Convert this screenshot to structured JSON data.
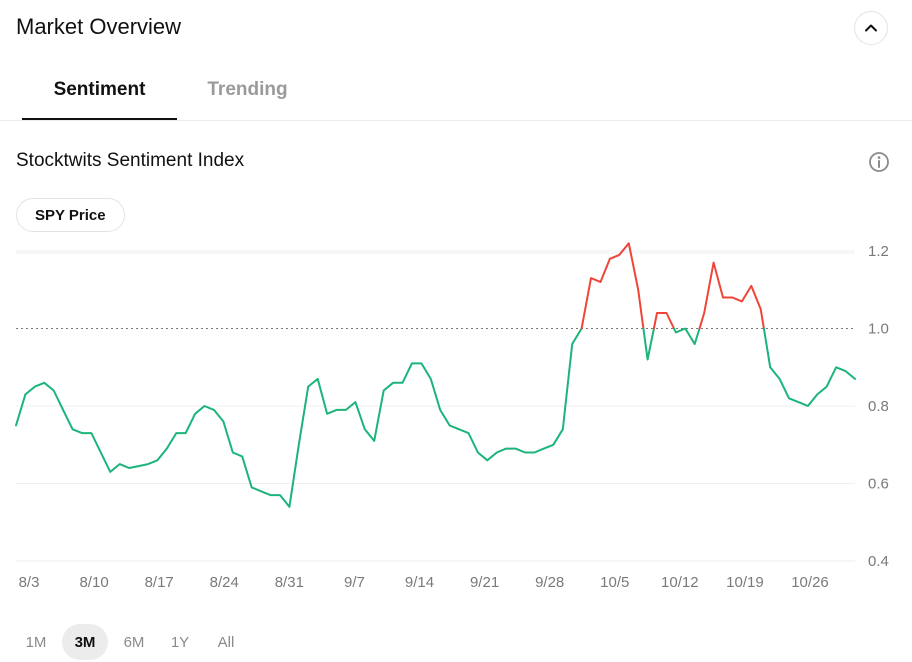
{
  "header": {
    "title": "Market Overview"
  },
  "tabs": [
    {
      "label": "Sentiment",
      "active": true
    },
    {
      "label": "Trending",
      "active": false
    }
  ],
  "section": {
    "title": "Stocktwits Sentiment Index"
  },
  "pill": {
    "label": "SPY Price"
  },
  "icons": {
    "collapse": "chevron-up-icon",
    "info": "info-icon"
  },
  "colors": {
    "bullish": "#1bb47a",
    "bearish": "#f04438",
    "grid": "#efefef",
    "baseline": "#777777"
  },
  "range": {
    "options": [
      "1M",
      "3M",
      "6M",
      "1Y",
      "All"
    ],
    "selected": "3M"
  },
  "chart_data": {
    "type": "line",
    "title": "",
    "xlabel": "",
    "ylabel": "",
    "ylim": [
      0.4,
      1.25
    ],
    "yticks": [
      "1.2",
      "1.0",
      "0.8",
      "0.6",
      "0.4"
    ],
    "xticks": [
      "8/3",
      "8/10",
      "8/17",
      "8/24",
      "8/31",
      "9/7",
      "9/14",
      "9/21",
      "9/28",
      "10/5",
      "10/12",
      "10/19",
      "10/26"
    ],
    "reference_line": 1.0,
    "grid": true,
    "series": [
      {
        "values": [
          0.75,
          0.83,
          0.85,
          0.86,
          0.84,
          0.79,
          0.74,
          0.73,
          0.73,
          0.68,
          0.63,
          0.65,
          0.64,
          0.645,
          0.65,
          0.66,
          0.69,
          0.73,
          0.73,
          0.78,
          0.8,
          0.79,
          0.76,
          0.68,
          0.67,
          0.59,
          0.58,
          0.57,
          0.57,
          0.54,
          0.7,
          0.85,
          0.87,
          0.78,
          0.79,
          0.79,
          0.81,
          0.74,
          0.71,
          0.84,
          0.86,
          0.86,
          0.91,
          0.91,
          0.87,
          0.79,
          0.75,
          0.74,
          0.73,
          0.68,
          0.66,
          0.68,
          0.69,
          0.69,
          0.68,
          0.68,
          0.69,
          0.7,
          0.74,
          0.96,
          1.0,
          1.13,
          1.12,
          1.18,
          1.19,
          1.22,
          1.1,
          0.92,
          1.04,
          1.04,
          0.99,
          1.0,
          0.96,
          1.04,
          1.17,
          1.08,
          1.08,
          1.07,
          1.11,
          1.05,
          0.9,
          0.87,
          0.82,
          0.81,
          0.8,
          0.83,
          0.85,
          0.9,
          0.89,
          0.87
        ]
      }
    ]
  }
}
